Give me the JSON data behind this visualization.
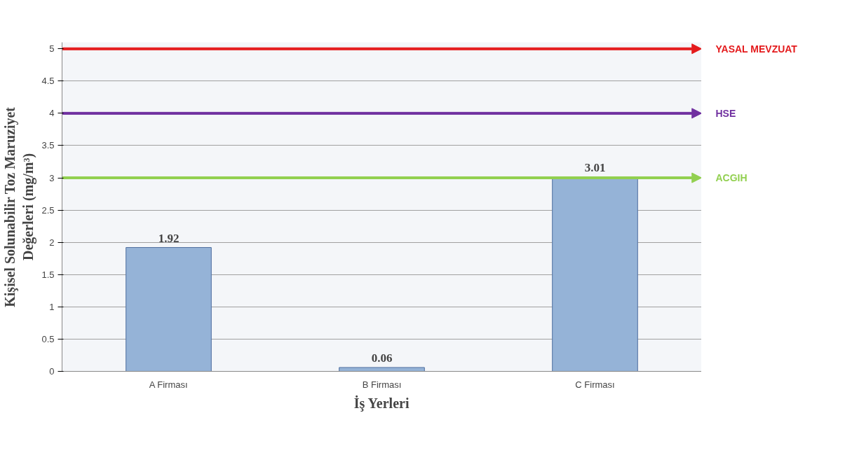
{
  "chart_data": {
    "type": "bar",
    "xlabel": "İş Yerleri",
    "ylabel": "Kişisel Solunabilir Toz Maruziyet\nDeğerleri (mg/m³)",
    "categories": [
      "A Firması",
      "B Firması",
      "C Firması"
    ],
    "values": [
      1.92,
      0.06,
      3.01
    ],
    "color": "#95b3d7",
    "data_labels": true,
    "ylim": [
      0,
      5.1
    ],
    "yticks": [
      0,
      0.5,
      1,
      1.5,
      2,
      2.5,
      3,
      3.5,
      4,
      4.5,
      5
    ],
    "grid": "y",
    "ref_lines": [
      {
        "axis": "y",
        "value": 5,
        "label": "YASAL MEVZUAT",
        "color": "#e41a1c"
      },
      {
        "axis": "y",
        "value": 4,
        "label": "HSE",
        "color": "#7030a0"
      },
      {
        "axis": "y",
        "value": 3,
        "label": "ACGIH",
        "color": "#92d050"
      }
    ]
  }
}
